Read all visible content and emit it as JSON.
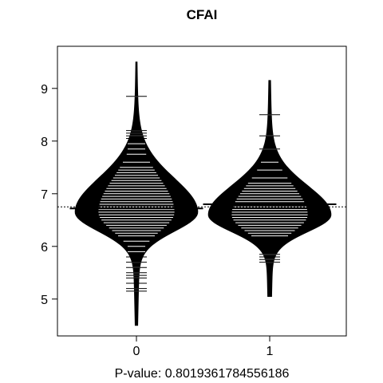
{
  "chart_data": {
    "type": "beanplot",
    "title": "CFAI",
    "xlabel": "P-value: 0.8019361784556186",
    "ylabel": "",
    "categories": [
      "0",
      "1"
    ],
    "yticks": [
      5,
      6,
      7,
      8,
      9
    ],
    "ylim": [
      4.3,
      9.8
    ],
    "overall_mean": 6.75,
    "beans": [
      {
        "name": "0",
        "mean": 6.72,
        "min": 4.5,
        "max": 9.5,
        "mode": 6.65,
        "spread_low": 0.36,
        "spread_high": 0.64,
        "max_half_width": 0.46,
        "observations": [
          8.85,
          8.2,
          8.15,
          8.1,
          8.05,
          7.95,
          7.85,
          7.75,
          7.6,
          7.5,
          7.45,
          7.4,
          7.35,
          7.3,
          7.25,
          7.2,
          7.15,
          7.1,
          7.05,
          7.0,
          6.95,
          6.9,
          6.85,
          6.8,
          6.75,
          6.7,
          6.65,
          6.6,
          6.55,
          6.5,
          6.45,
          6.4,
          6.35,
          6.3,
          6.25,
          6.2,
          6.1,
          6.0,
          5.9,
          5.8,
          5.7,
          5.6,
          5.5,
          5.45,
          5.4,
          5.3,
          5.2,
          5.15
        ]
      },
      {
        "name": "1",
        "mean": 6.8,
        "min": 5.05,
        "max": 9.15,
        "mode": 6.6,
        "spread_low": 0.32,
        "spread_high": 0.55,
        "max_half_width": 0.46,
        "observations": [
          8.5,
          8.1,
          7.85,
          7.6,
          7.45,
          7.3,
          7.2,
          7.15,
          7.1,
          7.05,
          7.0,
          6.95,
          6.9,
          6.85,
          6.8,
          6.75,
          6.7,
          6.65,
          6.6,
          6.55,
          6.5,
          6.45,
          6.4,
          6.35,
          6.3,
          6.25,
          6.2,
          5.85,
          5.8,
          5.75,
          5.7
        ]
      }
    ]
  }
}
